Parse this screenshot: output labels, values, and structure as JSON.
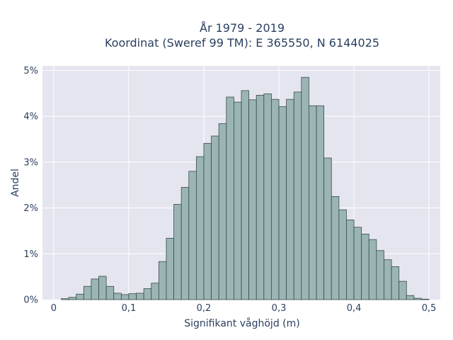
{
  "chart_data": {
    "type": "bar",
    "title_line1": "År 1979 - 2019",
    "title_line2": "Koordinat (Sweref 99 TM): E 365550, N 6144025",
    "xlabel": "Signifikant våghöjd (m)",
    "ylabel": "Andel",
    "xlim": [
      -0.015,
      0.515
    ],
    "ylim": [
      0,
      5.1
    ],
    "x_ticks": [
      {
        "value": 0,
        "label": "0"
      },
      {
        "value": 0.1,
        "label": "0,1"
      },
      {
        "value": 0.2,
        "label": "0,2"
      },
      {
        "value": 0.3,
        "label": "0,3"
      },
      {
        "value": 0.4,
        "label": "0,4"
      },
      {
        "value": 0.5,
        "label": "0,5"
      }
    ],
    "y_ticks": [
      {
        "value": 0,
        "label": "0%"
      },
      {
        "value": 1,
        "label": "1%"
      },
      {
        "value": 2,
        "label": "2%"
      },
      {
        "value": 3,
        "label": "3%"
      },
      {
        "value": 4,
        "label": "4%"
      },
      {
        "value": 5,
        "label": "5%"
      }
    ],
    "grid": true,
    "bin_width": 0.01,
    "bin_start": 0.01,
    "values": [
      0.02,
      0.05,
      0.12,
      0.29,
      0.45,
      0.51,
      0.29,
      0.14,
      0.11,
      0.13,
      0.14,
      0.24,
      0.36,
      0.83,
      1.34,
      2.08,
      2.45,
      2.8,
      3.12,
      3.41,
      3.57,
      3.84,
      4.42,
      4.31,
      4.56,
      4.36,
      4.46,
      4.49,
      4.37,
      4.21,
      4.37,
      4.53,
      4.85,
      4.23,
      4.23,
      3.09,
      2.25,
      1.96,
      1.74,
      1.58,
      1.43,
      1.31,
      1.07,
      0.87,
      0.72,
      0.4,
      0.09,
      0.03,
      0.01
    ]
  },
  "colors": {
    "plot_bg": "#e5e5f0",
    "bar_fill": "#9bb5b5",
    "bar_stroke": "#3a4a4a",
    "grid": "#ffffff",
    "text": "#2a3f5f"
  }
}
